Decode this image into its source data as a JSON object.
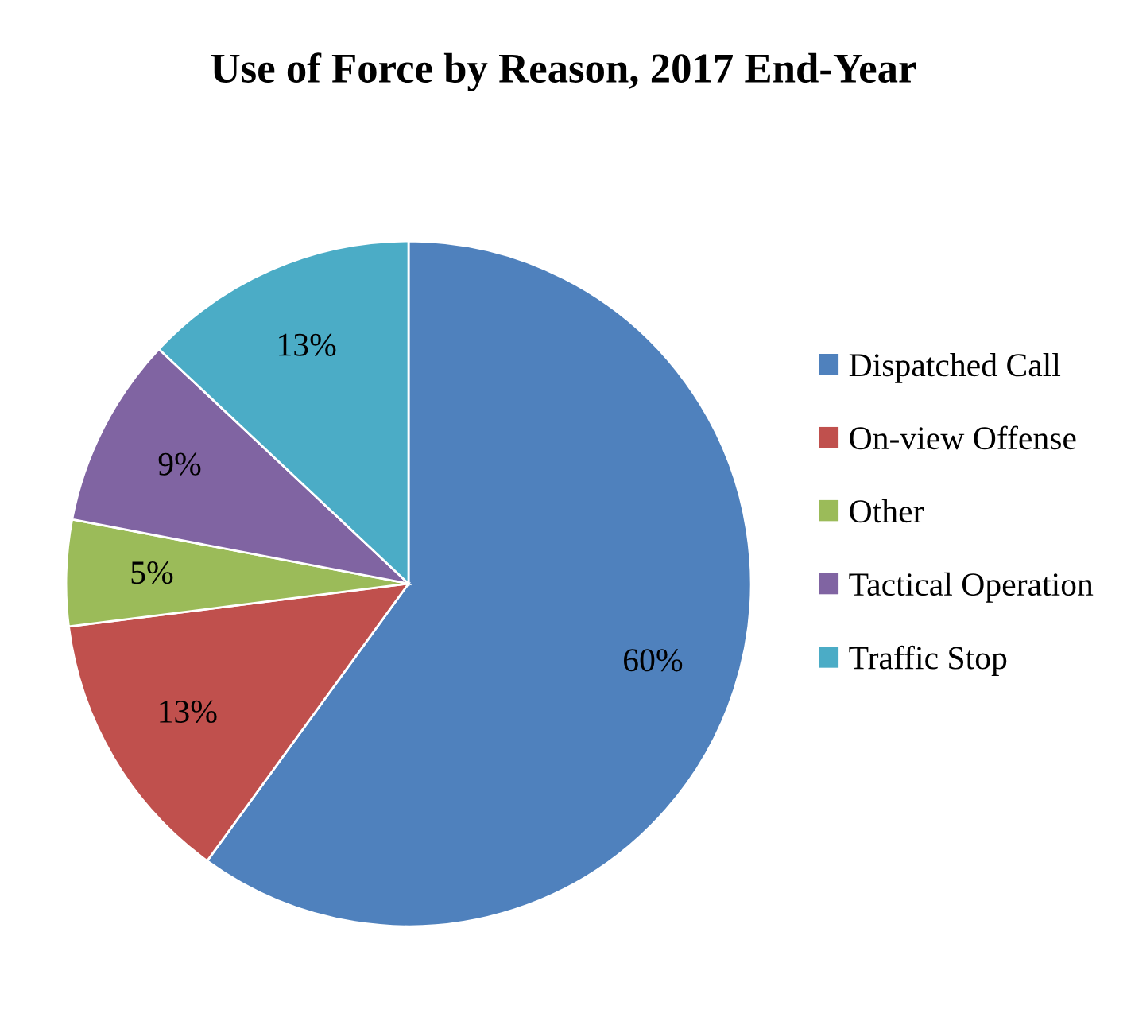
{
  "chart_data": {
    "type": "pie",
    "title": "Use of Force by Reason, 2017 End-Year",
    "categories": [
      "Dispatched Call",
      "On-view Offense",
      "Other",
      "Tactical Operation",
      "Traffic Stop"
    ],
    "values": [
      60,
      13,
      5,
      9,
      13
    ],
    "value_labels": [
      "60%",
      "13%",
      "5%",
      "9%",
      "13%"
    ],
    "colors": [
      "#4f81bd",
      "#c0504d",
      "#9bbb59",
      "#8064a2",
      "#4bacc6"
    ],
    "legend": "right"
  }
}
